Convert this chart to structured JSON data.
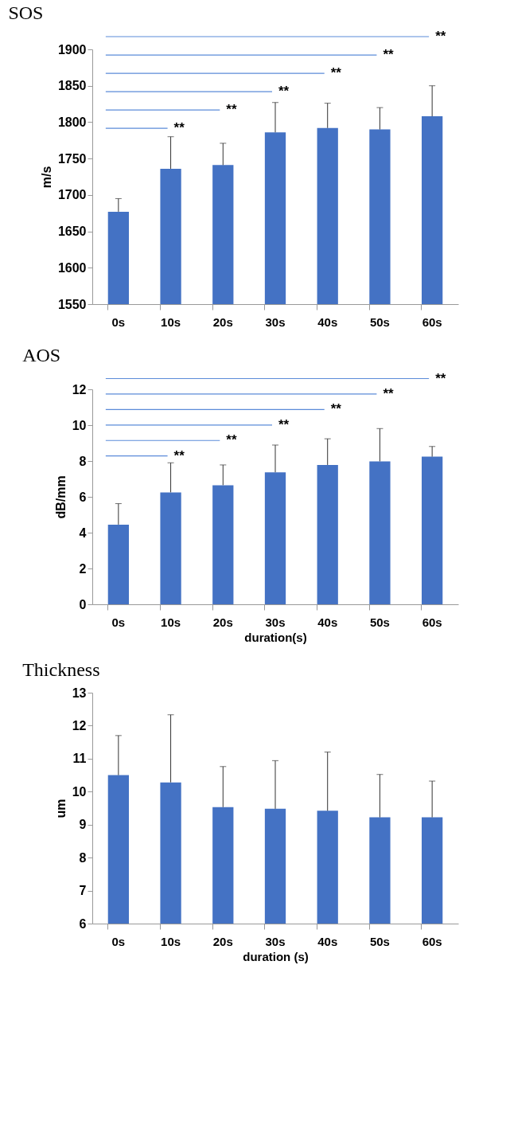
{
  "chart_data": [
    {
      "type": "bar",
      "title": "SOS",
      "ylabel": "m/s",
      "categories": [
        "0s",
        "10s",
        "20s",
        "30s",
        "40s",
        "50s",
        "60s"
      ],
      "values": [
        1677,
        1736,
        1741,
        1786,
        1792,
        1790,
        1808
      ],
      "color": "#4472c4",
      "errors": [
        [
          1677,
          1695
        ],
        [
          1736,
          1780
        ],
        [
          1741,
          1771
        ],
        [
          1786,
          1827
        ],
        [
          1792,
          1826
        ],
        [
          1790,
          1820
        ],
        [
          1808,
          1850
        ]
      ],
      "ylim": [
        1550,
        1900
      ],
      "yticks": [
        1550,
        1600,
        1650,
        1700,
        1750,
        1800,
        1850,
        1900
      ],
      "grid": false,
      "annotations": [
        "**",
        "**",
        "**",
        "**",
        "**",
        "**"
      ]
    },
    {
      "type": "bar",
      "title": "AOS",
      "ylabel": "dB/mm",
      "xlabel": "duration(s)",
      "categories": [
        "0s",
        "10s",
        "20s",
        "30s",
        "40s",
        "50s",
        "60s"
      ],
      "values": [
        4.45,
        6.25,
        6.65,
        7.37,
        7.78,
        7.98,
        8.24
      ],
      "color": "#4472c4",
      "errors": [
        [
          4.45,
          5.62
        ],
        [
          6.25,
          7.9
        ],
        [
          6.65,
          7.78
        ],
        [
          7.37,
          8.89
        ],
        [
          7.78,
          9.24
        ],
        [
          7.98,
          9.81
        ],
        [
          8.24,
          8.81
        ]
      ],
      "ylim": [
        0,
        12
      ],
      "yticks": [
        0,
        2,
        4,
        6,
        8,
        10,
        12
      ],
      "grid": false,
      "annotations": [
        "**",
        "**",
        "**",
        "**",
        "**",
        "**"
      ]
    },
    {
      "type": "bar",
      "title": "Thickness",
      "ylabel": "um",
      "xlabel": "duration (s)",
      "categories": [
        "0s",
        "10s",
        "20s",
        "30s",
        "40s",
        "50s",
        "60s"
      ],
      "values": [
        10.5,
        10.28,
        9.53,
        9.48,
        9.42,
        9.22,
        9.22
      ],
      "color": "#4472c4",
      "errors": [
        [
          10.5,
          11.7
        ],
        [
          10.28,
          12.33
        ],
        [
          9.53,
          10.76
        ],
        [
          9.48,
          10.94
        ],
        [
          9.42,
          11.2
        ],
        [
          9.22,
          10.52
        ],
        [
          9.22,
          10.32
        ]
      ],
      "ylim": [
        6,
        13
      ],
      "yticks": [
        6,
        7,
        8,
        9,
        10,
        11,
        12,
        13
      ],
      "grid": false
    }
  ]
}
